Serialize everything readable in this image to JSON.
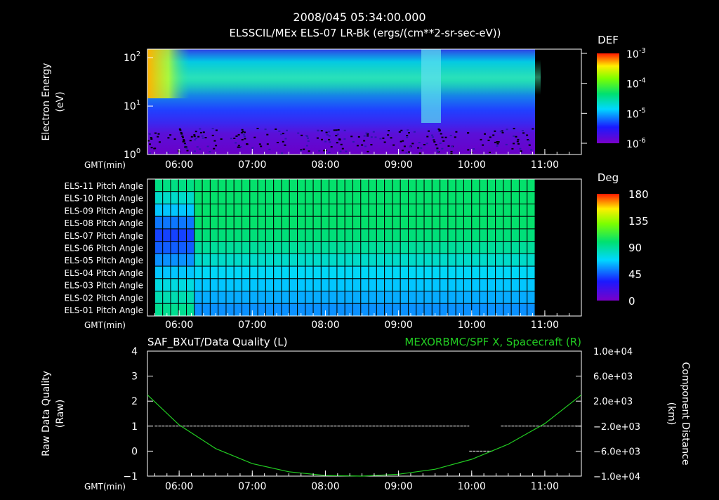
{
  "header": {
    "title_line1": "2008/045 05:34:00.000",
    "title_line2": "ELSSCIL/MEx ELS-07 LR-Bk  (ergs/(cm**2-sr-sec-eV))"
  },
  "colors": {
    "background": "#000000",
    "axis": "#ffffff",
    "spacecraft_line": "#22cc22",
    "quality_line": "#ffffff"
  },
  "chart_data": [
    {
      "type": "heatmap",
      "name": "electron-energy-spectrogram",
      "ylabel_line1": "Electron Energy",
      "ylabel_line2": "(eV)",
      "xlabel": "GMT(min)",
      "x_ticks": [
        "06:00",
        "07:00",
        "08:00",
        "09:00",
        "10:00",
        "11:00"
      ],
      "x_tick_minutes": [
        360,
        420,
        480,
        540,
        600,
        660
      ],
      "xlim_minutes": [
        334,
        690
      ],
      "data_end_minute": 652,
      "y_scale": "log",
      "ylim": [
        1,
        150
      ],
      "y_ticks": [
        "10^0",
        "10^1",
        "10^2"
      ],
      "colorbar": {
        "label": "DEF",
        "scale": "log",
        "ticks": [
          "10^-3",
          "10^-4",
          "10^-5",
          "10^-6"
        ],
        "range": [
          1e-06,
          0.001
        ]
      },
      "features": [
        {
          "time_range": [
            "05:34",
            "05:50"
          ],
          "description": "high flux at 20-150 eV"
        },
        {
          "time_range": [
            "09:25",
            "09:35"
          ],
          "description": "vertical enhancement"
        }
      ]
    },
    {
      "type": "heatmap",
      "name": "pitch-angle-grid",
      "xlabel": "GMT(min)",
      "x_ticks": [
        "06:00",
        "07:00",
        "08:00",
        "09:00",
        "10:00",
        "11:00"
      ],
      "x_tick_minutes": [
        360,
        420,
        480,
        540,
        600,
        660
      ],
      "xlim_minutes": [
        334,
        690
      ],
      "data_start_minute": 340,
      "data_end_minute": 652,
      "rows": [
        "ELS-11 Pitch Angle",
        "ELS-10 Pitch Angle",
        "ELS-09 Pitch Angle",
        "ELS-08 Pitch Angle",
        "ELS-07 Pitch Angle",
        "ELS-06 Pitch Angle",
        "ELS-05 Pitch Angle",
        "ELS-04 Pitch Angle",
        "ELS-03 Pitch Angle",
        "ELS-02 Pitch Angle",
        "ELS-01 Pitch Angle"
      ],
      "row_values_early": [
        95,
        80,
        65,
        50,
        40,
        45,
        55,
        65,
        75,
        85,
        92
      ],
      "row_values_late": [
        100,
        100,
        100,
        100,
        97,
        90,
        80,
        70,
        65,
        60,
        55
      ],
      "transition_minute": 368,
      "colorbar": {
        "label": "Deg",
        "ticks": [
          "180",
          "135",
          "90",
          "45",
          "0"
        ],
        "tick_values": [
          180,
          135,
          90,
          45,
          0
        ],
        "range": [
          0,
          180
        ]
      }
    },
    {
      "type": "line",
      "name": "data-quality-and-spacecraft-x",
      "title_left": "SAF_BXuT/Data Quality (L)",
      "title_right": "MEXORBMC/SPF X, Spacecraft (R)",
      "ylabel_left_line1": "Raw Data Quality",
      "ylabel_left_line2": "(Raw)",
      "ylabel_right_line1": "Component Distance",
      "ylabel_right_line2": "(km)",
      "xlabel": "GMT(min)",
      "x_ticks": [
        "06:00",
        "07:00",
        "08:00",
        "09:00",
        "10:00",
        "11:00"
      ],
      "x_tick_minutes": [
        360,
        420,
        480,
        540,
        600,
        660
      ],
      "xlim_minutes": [
        334,
        690
      ],
      "ylim_left": [
        -1,
        4
      ],
      "y_ticks_left": [
        "4",
        "3",
        "2",
        "1",
        "0",
        "−1"
      ],
      "y_tick_values_left": [
        4,
        3,
        2,
        1,
        0,
        -1
      ],
      "ylim_right": [
        -10000,
        10000
      ],
      "y_ticks_right": [
        "1.0e+04",
        "6.0e+03",
        "2.0e+03",
        "−2.0e+03",
        "−6.0e+03",
        "−1.0e+04"
      ],
      "y_tick_values_right": [
        10000,
        6000,
        2000,
        -2000,
        -6000,
        -10000
      ],
      "series": [
        {
          "name": "Data Quality",
          "axis": "left",
          "segments": [
            {
              "x": [
                340,
                598
              ],
              "y": [
                1,
                1
              ]
            },
            {
              "x": [
                598,
                617
              ],
              "y": [
                0,
                0
              ]
            },
            {
              "x": [
                624,
                690
              ],
              "y": [
                1,
                1
              ]
            }
          ]
        },
        {
          "name": "SPF X",
          "axis": "right",
          "x": [
            334,
            360,
            390,
            420,
            450,
            480,
            510,
            540,
            570,
            600,
            630,
            660,
            690
          ],
          "y": [
            3000,
            -1800,
            -5600,
            -8000,
            -9300,
            -9900,
            -10000,
            -9700,
            -8900,
            -7300,
            -4900,
            -1600,
            3000
          ]
        }
      ]
    }
  ]
}
